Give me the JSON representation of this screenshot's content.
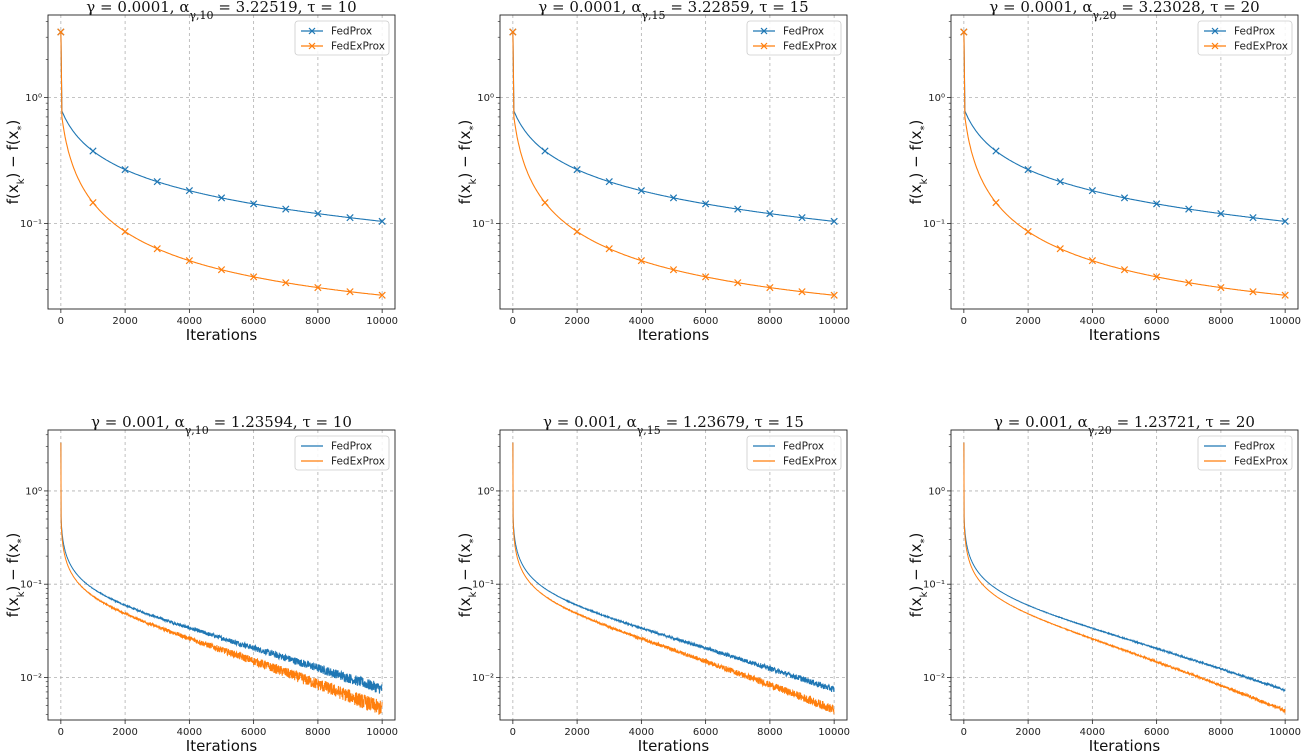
{
  "figure": {
    "colors": {
      "fedprox": "#1f77b4",
      "fedexprox": "#ff7f0e",
      "grid": "#b0b0b0",
      "axis": "#222222"
    }
  },
  "chart_data": [
    {
      "type": "line",
      "title": "γ = 0.0001, α_{γ,10} = 3.22519, τ = 10",
      "xlabel": "Iterations",
      "ylabel": "f(x_k) − f(x_*)",
      "yscale": "log",
      "xlim": [
        -400,
        10400
      ],
      "ylim": [
        0.021,
        4.5
      ],
      "xticks": [
        0,
        2000,
        4000,
        6000,
        8000,
        10000
      ],
      "yticks": [
        {
          "value": 1,
          "label": "10⁰"
        },
        {
          "value": 0.1,
          "label": "10⁻¹"
        }
      ],
      "grid": true,
      "legend_position": "top-right",
      "noise": 0,
      "series": [
        {
          "name": "FedProx",
          "color": "#1f77b4",
          "marker": "x",
          "markers_every": 1000,
          "start": 3.3,
          "y0": 0.82,
          "a": 7.0,
          "b": 600,
          "c": -0.45
        },
        {
          "name": "FedExProx",
          "color": "#ff7f0e",
          "marker": "x",
          "markers_every": 1000,
          "start": 3.3,
          "y0": 0.82,
          "a": 23.0,
          "b": 380,
          "c": -0.65
        }
      ]
    },
    {
      "type": "line",
      "title": "γ = 0.0001, α_{γ,15} = 3.22859, τ = 15",
      "xlabel": "Iterations",
      "ylabel": "f(x_k) − f(x_*)",
      "yscale": "log",
      "xlim": [
        -400,
        10400
      ],
      "ylim": [
        0.021,
        4.5
      ],
      "xticks": [
        0,
        2000,
        4000,
        6000,
        8000,
        10000
      ],
      "yticks": [
        {
          "value": 1,
          "label": "10⁰"
        },
        {
          "value": 0.1,
          "label": "10⁻¹"
        }
      ],
      "grid": true,
      "legend_position": "top-right",
      "noise": 0,
      "series": [
        {
          "name": "FedProx",
          "color": "#1f77b4",
          "marker": "x",
          "markers_every": 1000,
          "start": 3.3,
          "y0": 0.82,
          "a": 7.0,
          "b": 600,
          "c": -0.45
        },
        {
          "name": "FedExProx",
          "color": "#ff7f0e",
          "marker": "x",
          "markers_every": 1000,
          "start": 3.3,
          "y0": 0.82,
          "a": 23.0,
          "b": 380,
          "c": -0.65
        }
      ]
    },
    {
      "type": "line",
      "title": "γ = 0.0001, α_{γ,20} = 3.23028, τ = 20",
      "xlabel": "Iterations",
      "ylabel": "f(x_k) − f(x_*)",
      "yscale": "log",
      "xlim": [
        -400,
        10400
      ],
      "ylim": [
        0.021,
        4.5
      ],
      "xticks": [
        0,
        2000,
        4000,
        6000,
        8000,
        10000
      ],
      "yticks": [
        {
          "value": 1,
          "label": "10⁰"
        },
        {
          "value": 0.1,
          "label": "10⁻¹"
        }
      ],
      "grid": true,
      "legend_position": "top-right",
      "noise": 0,
      "series": [
        {
          "name": "FedProx",
          "color": "#1f77b4",
          "marker": "x",
          "markers_every": 1000,
          "start": 3.3,
          "y0": 0.82,
          "a": 7.0,
          "b": 600,
          "c": -0.45
        },
        {
          "name": "FedExProx",
          "color": "#ff7f0e",
          "marker": "x",
          "markers_every": 1000,
          "start": 3.3,
          "y0": 0.82,
          "a": 23.0,
          "b": 380,
          "c": -0.65
        }
      ]
    },
    {
      "type": "line",
      "title": "γ = 0.001, α_{γ,10} = 1.23594, τ = 10",
      "xlabel": "Iterations",
      "ylabel": "f(x_k) − f(x_*)",
      "yscale": "log",
      "xlim": [
        -400,
        10400
      ],
      "ylim": [
        0.0035,
        4.5
      ],
      "xticks": [
        0,
        2000,
        4000,
        6000,
        8000,
        10000
      ],
      "yticks": [
        {
          "value": 1,
          "label": "10⁰"
        },
        {
          "value": 0.1,
          "label": "10⁻¹"
        },
        {
          "value": 0.01,
          "label": "10⁻²"
        }
      ],
      "grid": true,
      "legend_position": "top-right",
      "noise": 0.14,
      "series": [
        {
          "name": "FedProx",
          "color": "#1f77b4",
          "marker": "none",
          "start": 3.3,
          "y0": 0.8,
          "a": 27.0,
          "b": 100,
          "c": -0.75,
          "final": 0.0075
        },
        {
          "name": "FedExProx",
          "color": "#ff7f0e",
          "marker": "none",
          "start": 3.3,
          "y0": 0.8,
          "a": 33.0,
          "b": 95,
          "c": -0.85,
          "final": 0.0046
        }
      ]
    },
    {
      "type": "line",
      "title": "γ = 0.001, α_{γ,15} = 1.23679, τ = 15",
      "xlabel": "Iterations",
      "ylabel": "f(x_k) − f(x_*)",
      "yscale": "log",
      "xlim": [
        -400,
        10400
      ],
      "ylim": [
        0.0035,
        4.5
      ],
      "xticks": [
        0,
        2000,
        4000,
        6000,
        8000,
        10000
      ],
      "yticks": [
        {
          "value": 1,
          "label": "10⁰"
        },
        {
          "value": 0.1,
          "label": "10⁻¹"
        },
        {
          "value": 0.01,
          "label": "10⁻²"
        }
      ],
      "grid": true,
      "legend_position": "top-right",
      "noise": 0.08,
      "series": [
        {
          "name": "FedProx",
          "color": "#1f77b4",
          "marker": "none",
          "start": 3.3,
          "y0": 0.8,
          "a": 27.0,
          "b": 100,
          "c": -0.75,
          "final": 0.0074
        },
        {
          "name": "FedExProx",
          "color": "#ff7f0e",
          "marker": "none",
          "start": 3.3,
          "y0": 0.8,
          "a": 33.0,
          "b": 95,
          "c": -0.85,
          "final": 0.0045
        }
      ]
    },
    {
      "type": "line",
      "title": "γ = 0.001, α_{γ,20} = 1.23721, τ = 20",
      "xlabel": "Iterations",
      "ylabel": "f(x_k) − f(x_*)",
      "yscale": "log",
      "xlim": [
        -400,
        10400
      ],
      "ylim": [
        0.0035,
        4.5
      ],
      "xticks": [
        0,
        2000,
        4000,
        6000,
        8000,
        10000
      ],
      "yticks": [
        {
          "value": 1,
          "label": "10⁰"
        },
        {
          "value": 0.1,
          "label": "10⁻¹"
        },
        {
          "value": 0.01,
          "label": "10⁻²"
        }
      ],
      "grid": true,
      "legend_position": "top-right",
      "noise": 0.03,
      "series": [
        {
          "name": "FedProx",
          "color": "#1f77b4",
          "marker": "none",
          "start": 3.3,
          "y0": 0.8,
          "a": 27.0,
          "b": 100,
          "c": -0.75,
          "final": 0.0073
        },
        {
          "name": "FedExProx",
          "color": "#ff7f0e",
          "marker": "none",
          "start": 3.3,
          "y0": 0.8,
          "a": 33.0,
          "b": 95,
          "c": -0.85,
          "final": 0.0044
        }
      ]
    }
  ]
}
